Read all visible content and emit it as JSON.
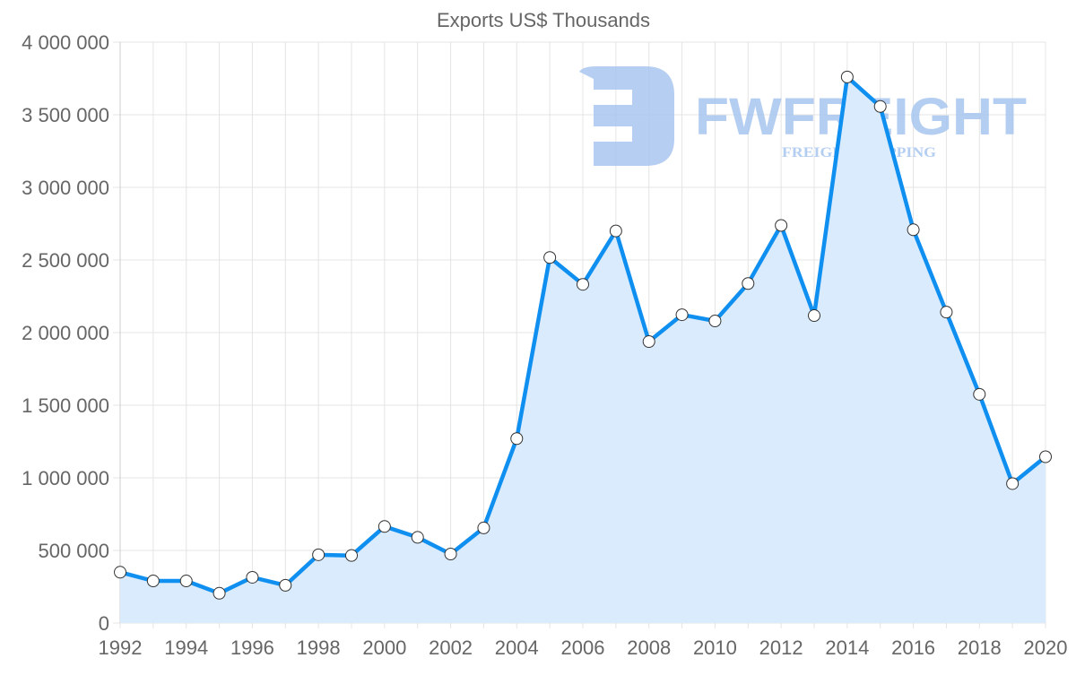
{
  "chart_data": {
    "type": "area",
    "title": "Exports US$ Thousands",
    "xlabel": "",
    "ylabel": "",
    "x": [
      1992,
      1993,
      1994,
      1995,
      1996,
      1997,
      1998,
      1999,
      2000,
      2001,
      2002,
      2003,
      2004,
      2005,
      2006,
      2007,
      2008,
      2009,
      2010,
      2011,
      2012,
      2013,
      2014,
      2015,
      2016,
      2017,
      2018,
      2019,
      2020
    ],
    "series": [
      {
        "name": "Exports US$ Thousands",
        "values": [
          350000,
          290000,
          290000,
          205000,
          315000,
          260000,
          470000,
          465000,
          665000,
          590000,
          475000,
          655000,
          1270000,
          2517000,
          2332000,
          2700000,
          1938000,
          2123000,
          2080000,
          2338000,
          2738000,
          2117000,
          3760000,
          3557000,
          2708000,
          2141000,
          1575000,
          960000,
          1145000
        ]
      }
    ],
    "ylim": [
      0,
      4000000
    ],
    "yticks": [
      0,
      500000,
      1000000,
      1500000,
      2000000,
      2500000,
      3000000,
      3500000,
      4000000
    ],
    "ytick_labels": [
      "0",
      "500 000",
      "1 000 000",
      "1 500 000",
      "2 000 000",
      "2 500 000",
      "3 000 000",
      "3 500 000",
      "4 000 000"
    ],
    "xtick_labels": [
      "1992",
      "1994",
      "1996",
      "1998",
      "2000",
      "2002",
      "2004",
      "2006",
      "2008",
      "2010",
      "2012",
      "2014",
      "2016",
      "2018",
      "2020"
    ],
    "grid": true,
    "legend": "none",
    "colors": {
      "line": "#0f8ff0",
      "fill": "#d9ebfc",
      "marker_fill": "#ffffff",
      "marker_stroke": "#333333",
      "grid": "#e4e4e4",
      "text": "#666666"
    }
  },
  "watermark": {
    "brand": "FWFREIGHT",
    "tagline": "FREIGHT SHIPPING",
    "color": "#a8c6f0"
  }
}
